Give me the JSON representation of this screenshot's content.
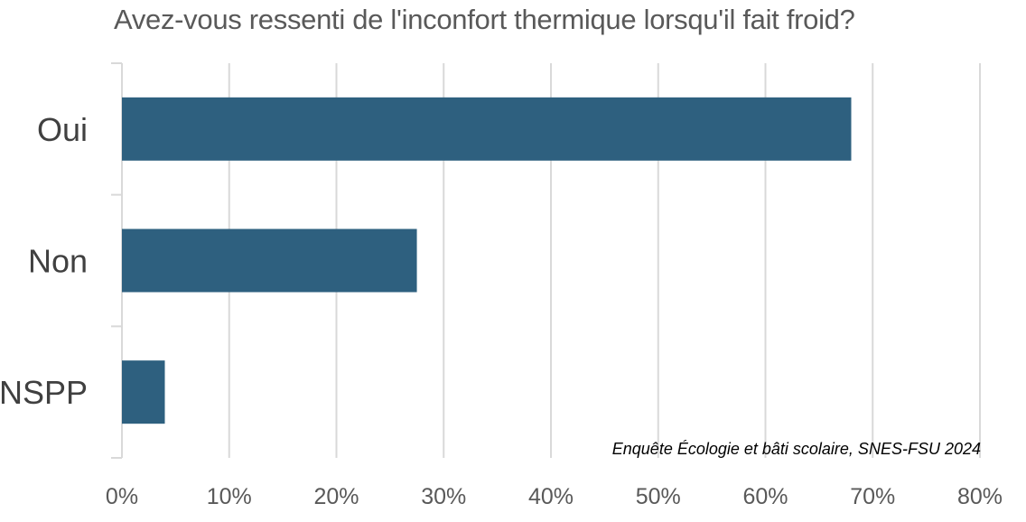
{
  "chart_data": {
    "type": "bar",
    "orientation": "horizontal",
    "title": "Avez-vous ressenti de l'inconfort thermique lorsqu'il fait froid?",
    "categories": [
      "Oui",
      "Non",
      "NSPP"
    ],
    "values": [
      68,
      27.5,
      4
    ],
    "x_ticks": [
      "0%",
      "10%",
      "20%",
      "30%",
      "40%",
      "50%",
      "60%",
      "70%",
      "80%"
    ],
    "xlim": [
      0,
      80
    ],
    "grid": true,
    "bar_color": "#2e607f",
    "grid_color": "#d9d9d9",
    "annotation": "Enquête Écologie et bâti scolaire, SNES-FSU 2024"
  }
}
